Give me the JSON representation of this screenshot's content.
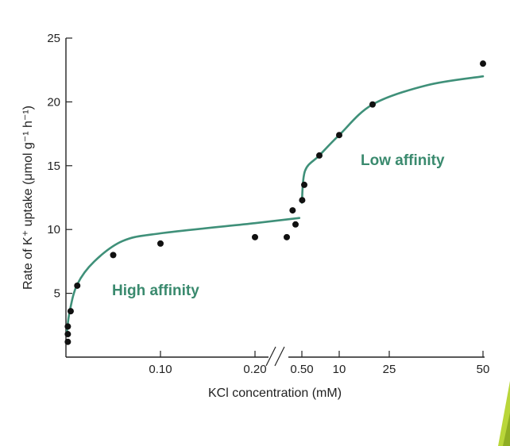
{
  "colors": {
    "curve": "#3f9079",
    "annotation": "#3a8a6e",
    "points": "#111111",
    "axis": "#222222",
    "corner_accent": "#b9d63a"
  },
  "chart_data": {
    "type": "scatter",
    "title": "",
    "xlabel": "KCl concentration (mM)",
    "ylabel": "Rate of K⁺ uptake (μmol g⁻¹ h⁻¹)",
    "ylim": [
      0,
      25
    ],
    "x_scale": "broken axis: low range 0–0.20 mM, high range 0.50–50 mM (nonlinear)",
    "x_ticks": [
      "0.10",
      "0.20",
      "0.50",
      "10",
      "25",
      "50"
    ],
    "y_ticks": [
      "5",
      "10",
      "15",
      "20",
      "25"
    ],
    "grid": false,
    "annotations": [
      "High affinity",
      "Low affinity"
    ],
    "series": [
      {
        "segment": "low-concentration range",
        "points": [
          {
            "x": 0.002,
            "y": 1.2
          },
          {
            "x": 0.002,
            "y": 1.8
          },
          {
            "x": 0.002,
            "y": 2.4
          },
          {
            "x": 0.005,
            "y": 3.6
          },
          {
            "x": 0.012,
            "y": 5.6
          },
          {
            "x": 0.05,
            "y": 8.0
          },
          {
            "x": 0.1,
            "y": 8.9
          },
          {
            "x": 0.2,
            "y": 9.4
          }
        ]
      },
      {
        "segment": "high-concentration range",
        "points": [
          {
            "x": 0.3,
            "y": 9.4
          },
          {
            "x": 0.4,
            "y": 11.5
          },
          {
            "x": 0.45,
            "y": 10.4
          },
          {
            "x": 0.52,
            "y": 12.3
          },
          {
            "x": 0.65,
            "y": 13.5
          },
          {
            "x": 5,
            "y": 15.8
          },
          {
            "x": 10,
            "y": 17.4
          },
          {
            "x": 20,
            "y": 19.8
          },
          {
            "x": 50,
            "y": 23.0
          }
        ]
      }
    ],
    "fit_curves": [
      {
        "segment": "high affinity",
        "points": [
          {
            "x": 0.001,
            "y": 2.0
          },
          {
            "x": 0.004,
            "y": 3.6
          },
          {
            "x": 0.012,
            "y": 5.7
          },
          {
            "x": 0.03,
            "y": 7.5
          },
          {
            "x": 0.06,
            "y": 9.1
          },
          {
            "x": 0.1,
            "y": 9.7
          },
          {
            "x": 0.2,
            "y": 10.5
          },
          {
            "x": 0.48,
            "y": 10.9
          }
        ]
      },
      {
        "segment": "low affinity",
        "points": [
          {
            "x": 0.5,
            "y": 12.1
          },
          {
            "x": 0.7,
            "y": 14.6
          },
          {
            "x": 5,
            "y": 15.8
          },
          {
            "x": 10,
            "y": 17.4
          },
          {
            "x": 20,
            "y": 19.8
          },
          {
            "x": 35,
            "y": 21.3
          },
          {
            "x": 50,
            "y": 22.0
          }
        ]
      }
    ]
  }
}
